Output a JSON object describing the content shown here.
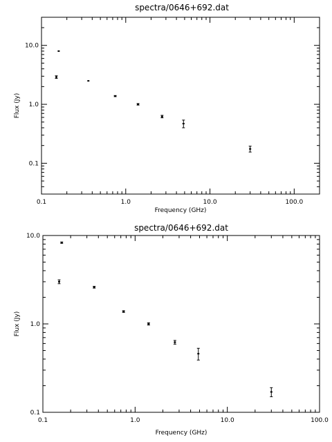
{
  "chart_data": [
    {
      "type": "scatter",
      "title": "spectra/0646+692.dat",
      "xlabel": "Frequency (GHz)",
      "ylabel": "Flux (Jy)",
      "xscale": "log",
      "yscale": "log",
      "xlim": [
        0.1,
        200.0
      ],
      "ylim": [
        0.03,
        30.0
      ],
      "xticks": [
        0.1,
        1.0,
        10.0,
        100.0
      ],
      "xtick_labels": [
        "0.1",
        "1.0",
        "10.0",
        "100.0"
      ],
      "yticks": [
        0.1,
        1.0,
        10.0
      ],
      "ytick_labels": [
        "0.1",
        "1.0",
        "10.0"
      ],
      "grid": false,
      "series": [
        {
          "x": [
            0.15,
            0.16,
            0.36,
            0.75,
            1.4,
            2.7,
            4.85,
            30.0
          ],
          "y": [
            2.9,
            8.0,
            2.5,
            1.38,
            1.0,
            0.62,
            0.47,
            0.175
          ],
          "yerr": [
            0.15,
            0.15,
            0.05,
            0.03,
            0.03,
            0.03,
            0.07,
            0.02
          ]
        }
      ]
    },
    {
      "type": "scatter",
      "title": "spectra/0646+692.dat",
      "xlabel": "Frequency (GHz)",
      "ylabel": "Flux (Jy)",
      "xscale": "log",
      "yscale": "log",
      "xlim": [
        0.1,
        100.0
      ],
      "ylim": [
        0.1,
        10.0
      ],
      "xticks": [
        0.1,
        1.0,
        10.0,
        100.0
      ],
      "xtick_labels": [
        "0.1",
        "1.0",
        "10.0",
        "100.0"
      ],
      "yticks": [
        0.1,
        1.0,
        10.0
      ],
      "ytick_labels": [
        "0.1",
        "1.0",
        "10.0"
      ],
      "grid": false,
      "series": [
        {
          "x": [
            0.15,
            0.16,
            0.36,
            0.75,
            1.4,
            2.7,
            4.85,
            30.0
          ],
          "y": [
            3.0,
            8.3,
            2.6,
            1.38,
            1.0,
            0.62,
            0.46,
            0.17
          ],
          "yerr": [
            0.15,
            0.15,
            0.06,
            0.03,
            0.03,
            0.03,
            0.07,
            0.02
          ]
        }
      ]
    }
  ]
}
